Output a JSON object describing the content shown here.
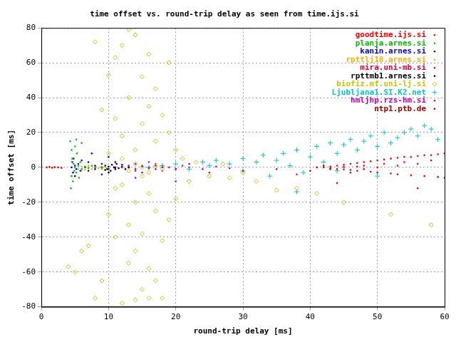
{
  "chart_data": {
    "type": "scatter",
    "title": "time offset vs. round-trip delay as seen from time.ijs.si",
    "x_label": "round-trip delay [ms]",
    "y_label": "time offset [ms]",
    "xlim": [
      0,
      60
    ],
    "xticks": [
      0,
      10,
      20,
      30,
      40,
      50,
      60
    ],
    "ylim": [
      -80,
      80
    ],
    "yticks": [
      -80,
      -60,
      -40,
      -20,
      0,
      20,
      40,
      60,
      80
    ],
    "grid": true,
    "legend": "top-right",
    "series": [
      {
        "name": "goodtime.ijs.si",
        "color": "#ff0000",
        "marker": "dot",
        "values": [
          [
            0.8,
            0
          ],
          [
            1.2,
            0.2
          ],
          [
            1.6,
            -0.2
          ],
          [
            2,
            0.1
          ],
          [
            2.5,
            0
          ],
          [
            3,
            -0.3
          ],
          [
            42,
            0
          ],
          [
            43,
            0.5
          ],
          [
            43,
            -0.5
          ],
          [
            44,
            1
          ],
          [
            44,
            -1
          ],
          [
            45,
            0.2
          ],
          [
            45,
            1.5
          ],
          [
            45,
            -1.2
          ],
          [
            46,
            2
          ],
          [
            46,
            -1.5
          ],
          [
            47,
            0.5
          ],
          [
            47,
            2.5
          ],
          [
            47,
            -2
          ],
          [
            48,
            3
          ],
          [
            48,
            -1
          ],
          [
            48,
            1
          ],
          [
            49,
            3.5
          ],
          [
            49,
            -2.5
          ],
          [
            50,
            0
          ],
          [
            50,
            4
          ],
          [
            50,
            -3
          ],
          [
            51,
            2
          ],
          [
            51,
            4.5
          ],
          [
            52,
            -3.5
          ],
          [
            52,
            5
          ],
          [
            53,
            1
          ],
          [
            53,
            5.5
          ],
          [
            53,
            -4
          ],
          [
            54,
            3
          ],
          [
            54,
            6
          ],
          [
            55,
            -4.5
          ],
          [
            55,
            6
          ],
          [
            56,
            2
          ],
          [
            56,
            6.5
          ],
          [
            57,
            -5
          ],
          [
            57,
            7
          ],
          [
            58,
            4
          ],
          [
            58,
            7
          ],
          [
            59,
            -5.5
          ],
          [
            59,
            7.5
          ],
          [
            60,
            8
          ],
          [
            60,
            -6
          ],
          [
            56,
            -12
          ]
        ]
      },
      {
        "name": "planja.arnes.si",
        "color": "#00c000",
        "marker": "dot",
        "values": [
          [
            4.3,
            15
          ],
          [
            4.5,
            10
          ],
          [
            4.5,
            -5
          ],
          [
            4.6,
            5
          ],
          [
            4.7,
            -8
          ],
          [
            4.8,
            2
          ],
          [
            4.9,
            -2
          ],
          [
            5,
            12
          ],
          [
            5,
            0
          ],
          [
            5.2,
            -3
          ],
          [
            5.3,
            8
          ],
          [
            5.5,
            1
          ],
          [
            5.6,
            -6
          ],
          [
            5.8,
            3
          ],
          [
            6,
            -1
          ],
          [
            6.5,
            0.5
          ],
          [
            7,
            -0.5
          ],
          [
            7.5,
            1
          ],
          [
            8,
            0
          ],
          [
            9,
            -0.3
          ],
          [
            5.2,
            16
          ],
          [
            4.4,
            -12
          ],
          [
            6,
            14
          ]
        ]
      },
      {
        "name": "kanin.arnes.si",
        "color": "#0000ff",
        "marker": "dot",
        "values": [
          [
            4.5,
            0
          ],
          [
            4.6,
            3
          ],
          [
            4.7,
            -3
          ],
          [
            4.8,
            5
          ],
          [
            5,
            -5
          ],
          [
            5,
            1
          ],
          [
            5.2,
            -1
          ],
          [
            5.5,
            2
          ],
          [
            5.8,
            -2
          ],
          [
            6,
            4
          ],
          [
            6.5,
            0
          ],
          [
            7,
            3
          ],
          [
            7,
            -2
          ],
          [
            8,
            1
          ],
          [
            8,
            -1
          ],
          [
            9,
            2
          ],
          [
            10,
            -1
          ],
          [
            10,
            6
          ],
          [
            11,
            0
          ],
          [
            12,
            1.5
          ],
          [
            9,
            -4
          ],
          [
            7.5,
            8
          ]
        ]
      },
      {
        "name": "rpttlj18.arnes.si",
        "color": "#ffb000",
        "marker": "dot",
        "values": [
          [
            5,
            0
          ],
          [
            5.5,
            -1
          ],
          [
            6,
            0.5
          ],
          [
            6.5,
            -1.5
          ],
          [
            7,
            0
          ],
          [
            7.5,
            -1
          ],
          [
            8,
            0.5
          ],
          [
            8.5,
            -0.5
          ],
          [
            9,
            -1
          ],
          [
            9.5,
            0
          ],
          [
            6,
            -2
          ],
          [
            7,
            1
          ]
        ]
      },
      {
        "name": "mira.uni-mb.si",
        "color": "#e0003c",
        "marker": "dot",
        "values": [
          [
            12,
            0
          ],
          [
            13,
            1
          ],
          [
            14,
            -1
          ],
          [
            15,
            0.5
          ],
          [
            16,
            -0.5
          ],
          [
            17,
            1
          ],
          [
            18,
            0
          ],
          [
            20,
            -1
          ],
          [
            22,
            2
          ],
          [
            25,
            -3
          ],
          [
            30,
            -2
          ],
          [
            35,
            -1
          ],
          [
            38,
            -4
          ],
          [
            44,
            -9
          ],
          [
            46,
            -3
          ]
        ]
      },
      {
        "name": "rpttmb1.arnes.si",
        "color": "#000000",
        "marker": "dot",
        "values": [
          [
            9,
            0
          ],
          [
            9.5,
            1
          ],
          [
            9.8,
            -1
          ],
          [
            10,
            0.5
          ],
          [
            10.3,
            -2
          ],
          [
            10.5,
            1.5
          ],
          [
            10.8,
            0
          ],
          [
            11,
            -1
          ],
          [
            11.2,
            2
          ],
          [
            11.5,
            -0.5
          ],
          [
            12,
            0.5
          ],
          [
            12.5,
            -1
          ],
          [
            13,
            0
          ],
          [
            10,
            -3
          ],
          [
            11,
            3
          ],
          [
            9.5,
            -1.5
          ]
        ]
      },
      {
        "name": "biofiz.mf.uni-lj.si",
        "color": "#c8c800",
        "marker": "diamond",
        "values": [
          [
            4,
            -57
          ],
          [
            5,
            -60
          ],
          [
            6,
            -48
          ],
          [
            7,
            -45
          ],
          [
            8,
            72
          ],
          [
            8,
            -75
          ],
          [
            9,
            33
          ],
          [
            9,
            -65
          ],
          [
            10,
            53
          ],
          [
            10,
            -27
          ],
          [
            11,
            63
          ],
          [
            11,
            -40
          ],
          [
            11,
            28
          ],
          [
            12,
            -10
          ],
          [
            12,
            70
          ],
          [
            12,
            18
          ],
          [
            13,
            40
          ],
          [
            13,
            -33
          ],
          [
            13,
            -55
          ],
          [
            14,
            76
          ],
          [
            14,
            10
          ],
          [
            14,
            -20
          ],
          [
            14,
            -48
          ],
          [
            15,
            52
          ],
          [
            15,
            25
          ],
          [
            15,
            -5
          ],
          [
            15,
            -38
          ],
          [
            15,
            -70
          ],
          [
            16,
            65
          ],
          [
            16,
            35
          ],
          [
            16,
            -15
          ],
          [
            16,
            -58
          ],
          [
            17,
            45
          ],
          [
            17,
            15
          ],
          [
            17,
            -25
          ],
          [
            17,
            -65
          ],
          [
            18,
            30
          ],
          [
            18,
            -42
          ],
          [
            19,
            20
          ],
          [
            19,
            -30
          ],
          [
            19,
            60
          ],
          [
            20,
            10
          ],
          [
            20,
            -18
          ],
          [
            21,
            5
          ],
          [
            22,
            -8
          ],
          [
            12,
            -78
          ],
          [
            13,
            79
          ],
          [
            14,
            -76
          ],
          [
            16,
            -75
          ],
          [
            18,
            -75
          ],
          [
            23,
            3
          ],
          [
            25,
            -5
          ],
          [
            27,
            2
          ],
          [
            30,
            -3
          ],
          [
            35,
            -13
          ],
          [
            38,
            -12
          ],
          [
            52,
            -27
          ],
          [
            58,
            -33
          ],
          [
            45,
            -20
          ],
          [
            41,
            -15
          ],
          [
            28,
            -6
          ],
          [
            32,
            -8
          ],
          [
            10,
            8
          ],
          [
            11,
            -12
          ],
          [
            12,
            5
          ],
          [
            13,
            -2
          ],
          [
            14,
            2
          ],
          [
            15,
            0
          ],
          [
            16,
            -3
          ],
          [
            17,
            1
          ],
          [
            18,
            -1
          ]
        ]
      },
      {
        "name": "Ljubljana1.SI.K2.net",
        "color": "#00c8c8",
        "marker": "plus",
        "values": [
          [
            16,
            0
          ],
          [
            18,
            1
          ],
          [
            20,
            2
          ],
          [
            22,
            -1
          ],
          [
            24,
            3
          ],
          [
            25,
            1
          ],
          [
            26,
            4
          ],
          [
            28,
            2
          ],
          [
            30,
            5
          ],
          [
            30,
            -2
          ],
          [
            32,
            3
          ],
          [
            33,
            7
          ],
          [
            34,
            -5
          ],
          [
            35,
            4
          ],
          [
            36,
            8
          ],
          [
            37,
            1
          ],
          [
            38,
            10
          ],
          [
            39,
            -3
          ],
          [
            40,
            6
          ],
          [
            41,
            12
          ],
          [
            42,
            3
          ],
          [
            43,
            14
          ],
          [
            44,
            8
          ],
          [
            45,
            13
          ],
          [
            46,
            16
          ],
          [
            47,
            10
          ],
          [
            48,
            15
          ],
          [
            49,
            18
          ],
          [
            50,
            12
          ],
          [
            51,
            20
          ],
          [
            52,
            14
          ],
          [
            53,
            17
          ],
          [
            54,
            20
          ],
          [
            55,
            22
          ],
          [
            56,
            18
          ],
          [
            57,
            24
          ],
          [
            58,
            22
          ],
          [
            59,
            16
          ],
          [
            38,
            -14
          ],
          [
            44,
            -2
          ],
          [
            50,
            -5
          ]
        ]
      },
      {
        "name": "hmljhp.rzs-hm.si",
        "color": "#c000c0",
        "marker": "dot",
        "values": [
          [
            13,
            0
          ],
          [
            14,
            2
          ],
          [
            14,
            -2
          ],
          [
            15,
            1
          ],
          [
            15,
            -3
          ],
          [
            16,
            3
          ],
          [
            16,
            0
          ],
          [
            17,
            -1
          ],
          [
            17,
            2
          ],
          [
            18,
            -2
          ],
          [
            18,
            1
          ],
          [
            19,
            0
          ],
          [
            20,
            -1
          ],
          [
            21,
            1
          ],
          [
            22,
            0
          ],
          [
            24,
            -1
          ],
          [
            26,
            0.5
          ],
          [
            28,
            -0.5
          ],
          [
            20,
            -8
          ],
          [
            14,
            -6
          ]
        ]
      },
      {
        "name": "ntp1.ptb.de",
        "color": "#a00000",
        "marker": "dot",
        "values": [
          [
            40,
            -2
          ],
          [
            41,
            0
          ],
          [
            42,
            1
          ],
          [
            43,
            -1
          ]
        ]
      }
    ]
  }
}
